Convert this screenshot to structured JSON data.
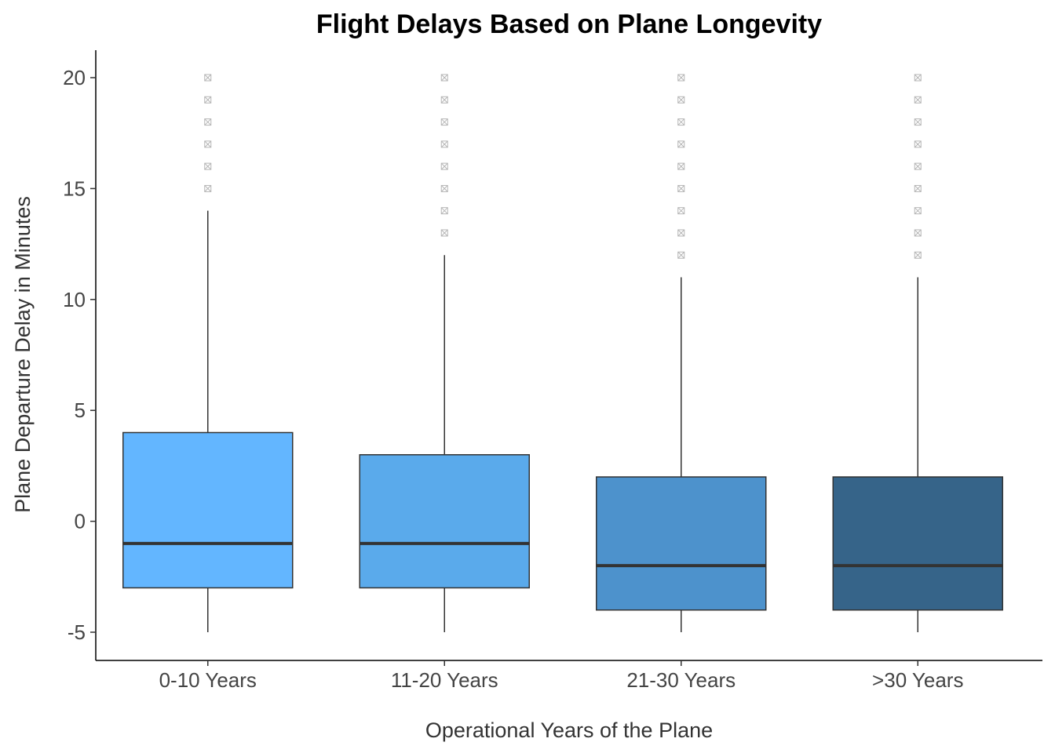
{
  "chart_data": {
    "type": "boxplot",
    "title": "Flight Delays Based on Plane Longevity",
    "xlabel": "Operational Years of the Plane",
    "ylabel": "Plane Departure Delay in Minutes",
    "ylim": [
      -6.3,
      21.3
    ],
    "yticks": [
      -5,
      0,
      5,
      10,
      15,
      20
    ],
    "ytick_labels": [
      "-5",
      "0",
      "5",
      "10",
      "15",
      "20"
    ],
    "grid": false,
    "legend": "none",
    "categories": [
      "0-10 Years",
      "11-20 Years",
      "21-30 Years",
      ">30 Years"
    ],
    "boxes": [
      {
        "category": "0-10 Years",
        "whisker_low": -5,
        "q1": -3,
        "median": -1,
        "q3": 4,
        "whisker_high": 14,
        "outliers": [
          15,
          16,
          17,
          18,
          19,
          20
        ],
        "color": "#63B6FF"
      },
      {
        "category": "11-20 Years",
        "whisker_low": -5,
        "q1": -3,
        "median": -1,
        "q3": 3,
        "whisker_high": 12,
        "outliers": [
          13,
          14,
          15,
          16,
          17,
          18,
          19,
          20
        ],
        "color": "#5AAAEB"
      },
      {
        "category": "21-30 Years",
        "whisker_low": -5,
        "q1": -4,
        "median": -2,
        "q3": 2,
        "whisker_high": 11,
        "outliers": [
          12,
          13,
          14,
          15,
          16,
          17,
          18,
          19,
          20
        ],
        "color": "#4D92CC"
      },
      {
        "category": ">30 Years",
        "whisker_low": -5,
        "q1": -4,
        "median": -2,
        "q3": 2,
        "whisker_high": 11,
        "outliers": [
          12,
          13,
          14,
          15,
          16,
          17,
          18,
          19,
          20
        ],
        "color": "#366489"
      }
    ]
  }
}
